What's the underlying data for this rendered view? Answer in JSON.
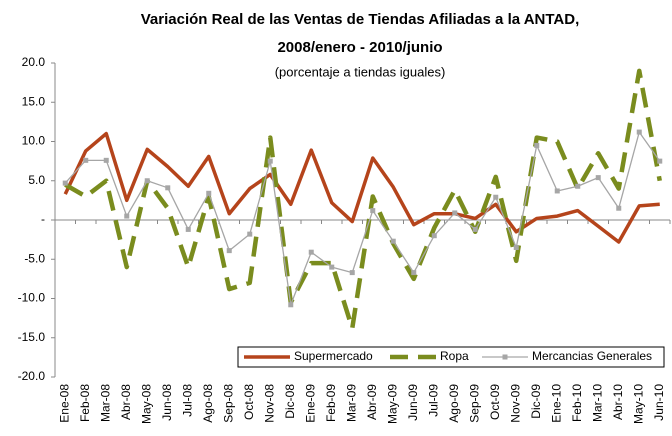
{
  "chart_data": {
    "type": "line",
    "title": "Variación Real de las Ventas de Tiendas Afiliadas a la ANTAD,",
    "subtitle_bold": "2008/enero - 2010/junio",
    "subtitle": "(porcentaje a tiendas iguales)",
    "categories": [
      "Ene-08",
      "Feb-08",
      "Mar-08",
      "Abr-08",
      "May-08",
      "Jun-08",
      "Jul-08",
      "Ago-08",
      "Sep-08",
      "Oct-08",
      "Nov-08",
      "Dic-08",
      "Ene-09",
      "Feb-09",
      "Mar-09",
      "Abr-09",
      "May-09",
      "Jun-09",
      "Jul-09",
      "Ago-09",
      "Sep-09",
      "Oct-09",
      "Nov-09",
      "Dic-09",
      "Ene-10",
      "Feb-10",
      "Mar-10",
      "Abr-10",
      "May-10",
      "Jun-10"
    ],
    "series": [
      {
        "name": "Supermercado",
        "color": "#b5441b",
        "values": [
          3.3,
          8.8,
          11.0,
          2.5,
          9.0,
          6.8,
          4.3,
          8.1,
          0.8,
          4.0,
          5.8,
          2.0,
          8.9,
          2.2,
          -0.2,
          7.9,
          4.2,
          -0.6,
          0.8,
          0.8,
          0.2,
          2.0,
          -1.5,
          0.2,
          0.5,
          1.2,
          -0.8,
          -2.8,
          1.8,
          2.0
        ]
      },
      {
        "name": "Ropa",
        "color": "#7a8c1e",
        "values": [
          4.5,
          3.0,
          5.0,
          -6.0,
          5.0,
          1.5,
          -6.0,
          3.0,
          -8.8,
          -8.0,
          10.5,
          -10.5,
          -5.5,
          -5.5,
          -13.8,
          3.0,
          -3.0,
          -7.5,
          -1.0,
          3.8,
          -1.5,
          5.5,
          -5.2,
          10.5,
          10.0,
          4.0,
          8.5,
          4.0,
          19.0,
          5.0
        ]
      },
      {
        "name": "Mercancias Generales",
        "color": "#a6a6a6",
        "values": [
          4.7,
          7.6,
          7.6,
          0.5,
          5.0,
          4.1,
          -1.2,
          3.4,
          -3.9,
          -1.8,
          7.5,
          -10.8,
          -4.1,
          -6.0,
          -6.7,
          1.2,
          -2.7,
          -6.7,
          -2.0,
          0.9,
          -1.2,
          2.9,
          -3.5,
          9.5,
          3.7,
          4.3,
          5.4,
          1.5,
          11.2,
          7.5
        ]
      }
    ],
    "ylim": [
      -20,
      20
    ],
    "yticks": [
      {
        "value": 20,
        "label": "20.0"
      },
      {
        "value": 15,
        "label": "15.0"
      },
      {
        "value": 10,
        "label": "10.0"
      },
      {
        "value": 5,
        "label": "5.0"
      },
      {
        "value": 0,
        "label": "-"
      },
      {
        "value": -5,
        "label": "-5.0"
      },
      {
        "value": -10,
        "label": "-10.0"
      },
      {
        "value": -15,
        "label": "-15.0"
      },
      {
        "value": -20,
        "label": "-20.0"
      }
    ],
    "legend": "lower right"
  }
}
